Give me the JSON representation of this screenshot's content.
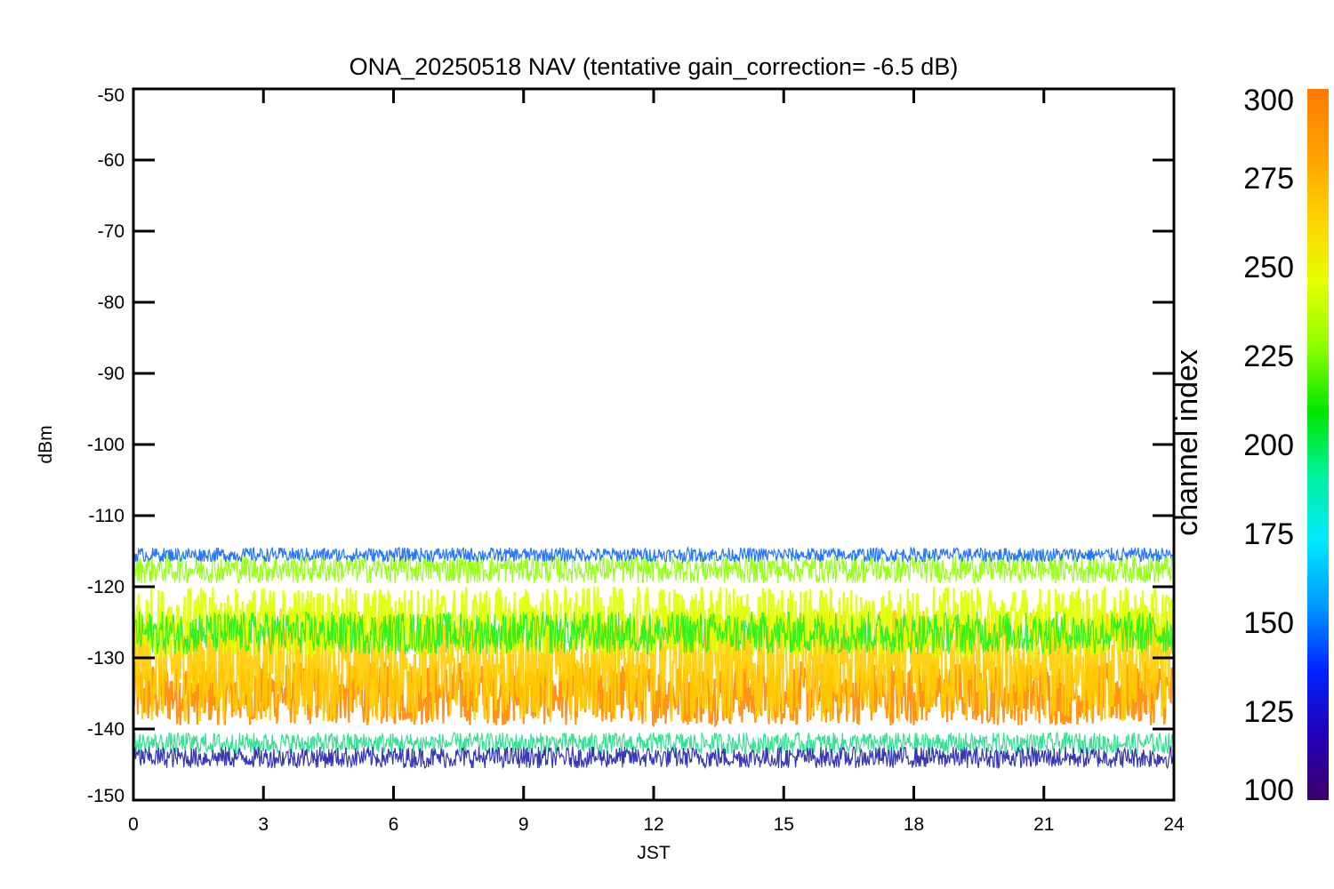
{
  "chart_data": {
    "type": "line",
    "title": "ONA_20250518 NAV (tentative gain_correction= -6.5 dB)",
    "xlabel": "JST",
    "ylabel": "dBm",
    "xlim": [
      0,
      24
    ],
    "ylim": [
      -150,
      -50
    ],
    "xticks": [
      0,
      3,
      6,
      9,
      12,
      15,
      18,
      21,
      24
    ],
    "yticks": [
      -50,
      -60,
      -70,
      -80,
      -90,
      -100,
      -110,
      -120,
      -130,
      -140,
      -150
    ],
    "grid": false,
    "colorbar": {
      "label": "channel index",
      "range": [
        100,
        300
      ],
      "ticks": [
        300,
        275,
        250,
        225,
        200,
        175,
        150,
        125,
        100
      ],
      "colormap": [
        "#3c0068",
        "#2200b8",
        "#0022ff",
        "#0099ff",
        "#00e8ff",
        "#00f2a0",
        "#00e600",
        "#8cff00",
        "#e6ff00",
        "#ffd200",
        "#ffa000",
        "#ff7a00"
      ]
    },
    "series": [
      {
        "channel_index": 295,
        "color": "#ff8800",
        "center_dbm": -135,
        "spread_dbm": 4.5
      },
      {
        "channel_index": 280,
        "color": "#ffcc00",
        "center_dbm": -131,
        "spread_dbm": 8
      },
      {
        "channel_index": 262,
        "color": "#ddff00",
        "center_dbm": -125,
        "spread_dbm": 5
      },
      {
        "channel_index": 250,
        "color": "#8cff00",
        "center_dbm": -117.5,
        "spread_dbm": 2
      },
      {
        "channel_index": 235,
        "color": "#22ee22",
        "center_dbm": -126.5,
        "spread_dbm": 3
      },
      {
        "channel_index": 205,
        "color": "#22dd88",
        "center_dbm": -142,
        "spread_dbm": 1.5
      },
      {
        "channel_index": 160,
        "color": "#1166ff",
        "center_dbm": -115.5,
        "spread_dbm": 1
      },
      {
        "channel_index": 120,
        "color": "#2222aa",
        "center_dbm": -144,
        "spread_dbm": 1.5
      }
    ]
  }
}
